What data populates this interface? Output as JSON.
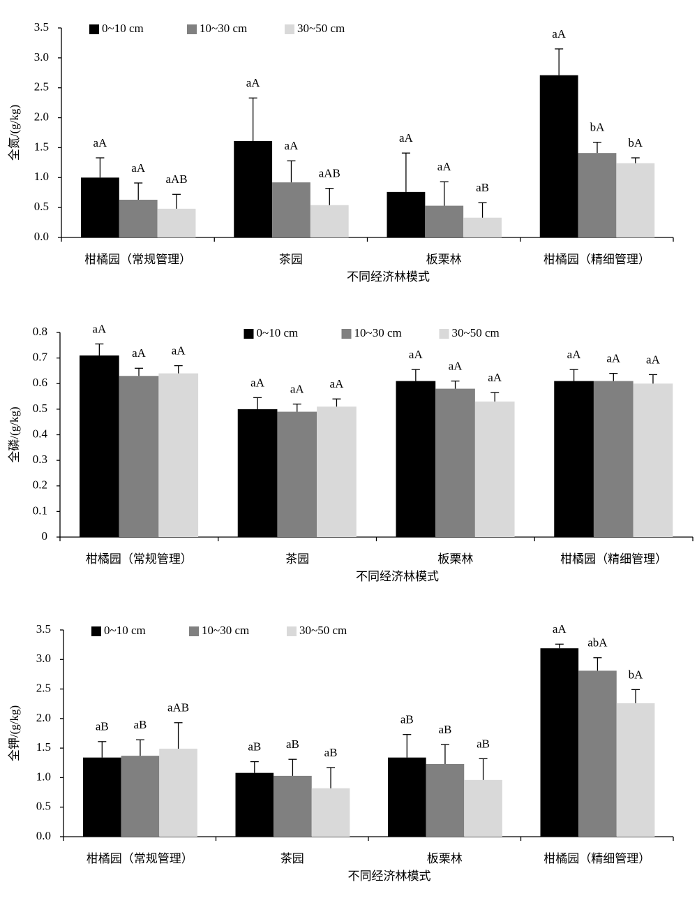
{
  "chart_data": [
    {
      "type": "bar",
      "y_label": "全氮/(g/kg)",
      "x_label": "不同经济林模式",
      "legend_position": "top-left",
      "categories": [
        "柑橘园（常规管理）",
        "茶园",
        "板栗林",
        "柑橘园（精细管理）"
      ],
      "ylim": [
        0,
        3.5
      ],
      "yticks": [
        {
          "value": 0,
          "label": "0.0"
        },
        0.5,
        {
          "value": 1,
          "label": "1.0"
        },
        1.5,
        {
          "value": 2,
          "label": "2.0"
        },
        2.5,
        {
          "value": 3,
          "label": "3.0"
        },
        3.5
      ],
      "series": [
        {
          "name": "0~10 cm",
          "color": "#000000",
          "values": [
            1.0,
            1.61,
            0.76,
            2.71
          ],
          "errors": [
            0.33,
            0.72,
            0.65,
            0.44
          ],
          "letters": [
            "aA",
            "aA",
            "aA",
            "aA"
          ]
        },
        {
          "name": "10~30 cm",
          "color": "#808080",
          "values": [
            0.63,
            0.92,
            0.53,
            1.41
          ],
          "errors": [
            0.28,
            0.36,
            0.4,
            0.18
          ],
          "letters": [
            "aA",
            "aA",
            "aA",
            "bA"
          ]
        },
        {
          "name": "30~50 cm",
          "color": "#d9d9d9",
          "values": [
            0.48,
            0.54,
            0.33,
            1.24
          ],
          "errors": [
            0.24,
            0.28,
            0.25,
            0.09
          ],
          "letters": [
            "aAB",
            "aAB",
            "aB",
            "bA"
          ]
        }
      ]
    },
    {
      "type": "bar",
      "y_label": "全磷/(g/kg)",
      "x_label": "不同经济林模式",
      "legend_position": "top-center",
      "categories": [
        "柑橘园（常规管理）",
        "茶园",
        "板栗林",
        "柑橘园（精细管理）"
      ],
      "ylim": [
        0,
        0.8
      ],
      "yticks": [
        0,
        0.1,
        0.2,
        0.3,
        0.4,
        0.5,
        0.6,
        0.7,
        0.8
      ],
      "series": [
        {
          "name": "0~10 cm",
          "color": "#000000",
          "values": [
            0.71,
            0.5,
            0.61,
            0.61
          ],
          "errors": [
            0.045,
            0.045,
            0.045,
            0.045
          ],
          "letters": [
            "aA",
            "aA",
            "aA",
            "aA"
          ]
        },
        {
          "name": "10~30 cm",
          "color": "#808080",
          "values": [
            0.63,
            0.49,
            0.58,
            0.61
          ],
          "errors": [
            0.03,
            0.03,
            0.03,
            0.03
          ],
          "letters": [
            "aA",
            "aA",
            "aA",
            "aA"
          ]
        },
        {
          "name": "30~50 cm",
          "color": "#d9d9d9",
          "values": [
            0.64,
            0.51,
            0.53,
            0.6
          ],
          "errors": [
            0.03,
            0.03,
            0.035,
            0.035
          ],
          "letters": [
            "aA",
            "aA",
            "aA",
            "aA"
          ]
        }
      ]
    },
    {
      "type": "bar",
      "y_label": "全钾/(g/kg)",
      "x_label": "不同经济林模式",
      "legend_position": "top-left",
      "categories": [
        "柑橘园（常规管理）",
        "茶园",
        "板栗林",
        "柑橘园（精细管理）"
      ],
      "ylim": [
        0,
        3.5
      ],
      "yticks": [
        {
          "value": 0,
          "label": "0.0"
        },
        0.5,
        {
          "value": 1,
          "label": "1.0"
        },
        1.5,
        {
          "value": 2,
          "label": "2.0"
        },
        2.5,
        {
          "value": 3,
          "label": "3.0"
        },
        3.5
      ],
      "series": [
        {
          "name": "0~10 cm",
          "color": "#000000",
          "values": [
            1.34,
            1.08,
            1.34,
            3.19
          ],
          "errors": [
            0.27,
            0.19,
            0.39,
            0.07
          ],
          "letters": [
            "aB",
            "aB",
            "aB",
            "aA"
          ]
        },
        {
          "name": "10~30 cm",
          "color": "#808080",
          "values": [
            1.37,
            1.03,
            1.23,
            2.81
          ],
          "errors": [
            0.27,
            0.28,
            0.33,
            0.22
          ],
          "letters": [
            "aB",
            "aB",
            "aB",
            "abA"
          ]
        },
        {
          "name": "30~50 cm",
          "color": "#d9d9d9",
          "values": [
            1.49,
            0.82,
            0.96,
            2.26
          ],
          "errors": [
            0.44,
            0.35,
            0.36,
            0.23
          ],
          "letters": [
            "aAB",
            "aB",
            "aB",
            "bA"
          ]
        }
      ]
    }
  ]
}
